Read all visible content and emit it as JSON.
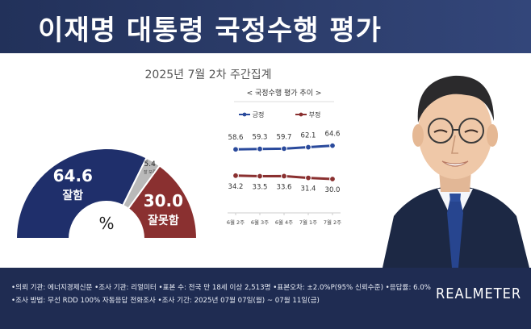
{
  "header": {
    "title": "이재명 대통령 국정수행 평가"
  },
  "subtitle": "2025년 7월 2차 주간집계",
  "chart_data": [
    {
      "type": "pie",
      "subtype": "half-donut",
      "center_label": "%",
      "slices": [
        {
          "label": "잘함",
          "value": 64.6,
          "color": "#1f2f6b"
        },
        {
          "label": "잘 모름",
          "value": 5.4,
          "color": "#b9b9b9"
        },
        {
          "label": "잘못함",
          "value": 30.0,
          "color": "#8a3030"
        }
      ]
    },
    {
      "type": "line",
      "title": "국정수행 평가 추이",
      "categories": [
        "6월 2주",
        "6월 3주",
        "6월 4주",
        "7월 1주",
        "7월 2주"
      ],
      "series": [
        {
          "name": "긍정",
          "values": [
            58.6,
            59.3,
            59.7,
            62.1,
            64.6
          ],
          "color": "#2a4a9c"
        },
        {
          "name": "부정",
          "values": [
            34.2,
            33.5,
            33.6,
            31.4,
            30.0
          ],
          "color": "#8a3030"
        }
      ],
      "legend": "top"
    }
  ],
  "footer": {
    "line1": "•의뢰 기관: 에너지경제신문 •조사 기관: 리얼미터 •표본 수: 전국 만 18세 이상 2,513명 •표본오차: ±2.0%P(95% 신뢰수준) •응답률: 6.0%",
    "line2": "•조사 방법: 무선 RDD 100% 자동응답 전화조사 •조사 기간: 2025년 07월 07일(월) ~ 07월 11일(금)",
    "brand": "REALMETER"
  },
  "colors": {
    "header_bg": "#22315a",
    "footer_bg": "#1f2c52",
    "positive": "#1f2f6b",
    "negative": "#8a3030",
    "unknown": "#b9b9b9"
  }
}
